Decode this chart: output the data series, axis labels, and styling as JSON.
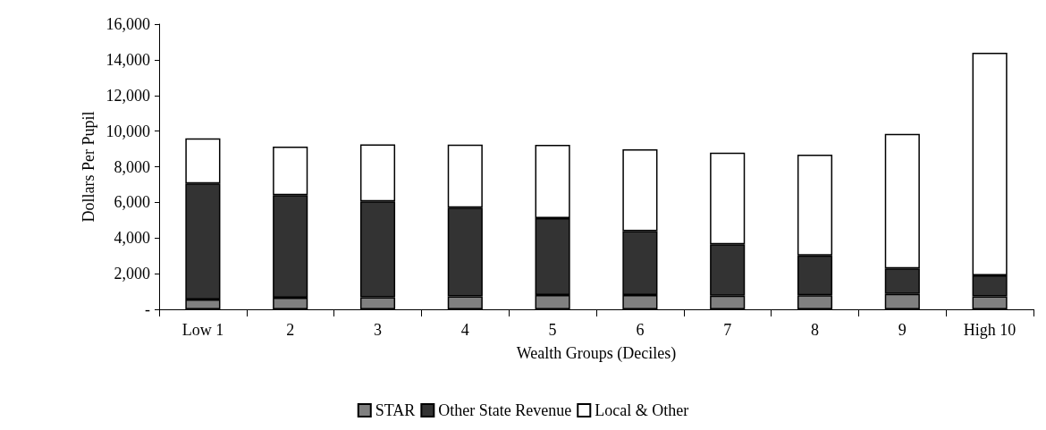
{
  "chart_data": {
    "type": "bar",
    "stacked": true,
    "xlabel": "Wealth Groups (Deciles)",
    "ylabel": "Dollars Per Pupil",
    "categories": [
      "Low 1",
      "2",
      "3",
      "4",
      "5",
      "6",
      "7",
      "8",
      "9",
      "High 10"
    ],
    "series": [
      {
        "name": "STAR",
        "color": "#808080",
        "values": [
          550,
          650,
          680,
          730,
          800,
          800,
          760,
          790,
          860,
          730
        ]
      },
      {
        "name": "Other State Revenue",
        "color": "#333333",
        "values": [
          6510,
          5760,
          5380,
          4980,
          4310,
          3590,
          2890,
          2230,
          1430,
          1170
        ]
      },
      {
        "name": "Local & Other",
        "color": "#ffffff",
        "values": [
          2530,
          2720,
          3200,
          3530,
          4120,
          4590,
          5140,
          5660,
          7550,
          12490
        ]
      }
    ],
    "ylim": [
      0,
      16000
    ],
    "yticks": [
      {
        "value": 0,
        "label": "-"
      },
      {
        "value": 2000,
        "label": "2,000"
      },
      {
        "value": 4000,
        "label": "4,000"
      },
      {
        "value": 6000,
        "label": "6,000"
      },
      {
        "value": 8000,
        "label": "8,000"
      },
      {
        "value": 10000,
        "label": "10,000"
      },
      {
        "value": 12000,
        "label": "12,000"
      },
      {
        "value": 14000,
        "label": "14,000"
      },
      {
        "value": 16000,
        "label": "16,000"
      }
    ],
    "grid": false,
    "legend": "bottom"
  }
}
